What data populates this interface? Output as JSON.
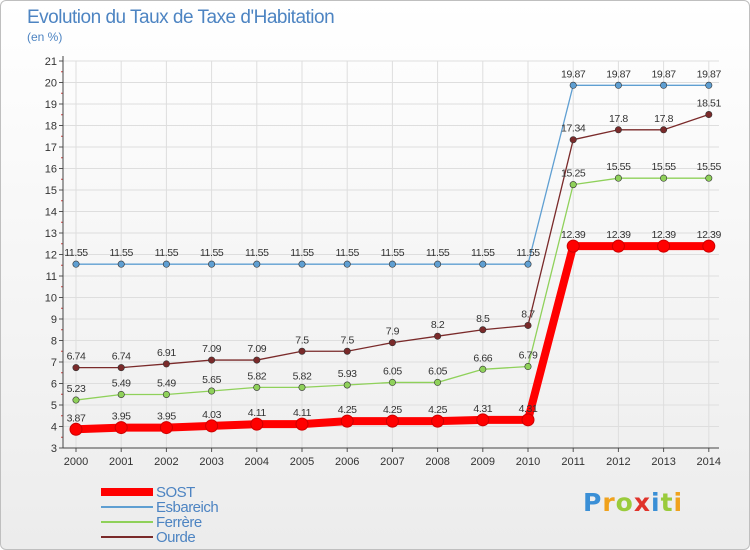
{
  "header": {
    "title": "Evolution du Taux de Taxe d'Habitation",
    "subtitle": "(en %)"
  },
  "logo": {
    "text": "Proxiti",
    "letters": [
      "P",
      "r",
      "o",
      "x",
      "i",
      "t",
      "i"
    ]
  },
  "chart_data": {
    "type": "line",
    "categories": [
      "2000",
      "2001",
      "2002",
      "2003",
      "2004",
      "2005",
      "2006",
      "2007",
      "2008",
      "2009",
      "2010",
      "2011",
      "2012",
      "2013",
      "2014"
    ],
    "ylim": [
      3,
      21
    ],
    "yticks": [
      "3",
      "4",
      "5",
      "6",
      "7",
      "8",
      "9",
      "10",
      "11",
      "12",
      "13",
      "14",
      "15",
      "16",
      "17",
      "18",
      "19",
      "20",
      "21"
    ],
    "grid": true,
    "legend_position": "bottom-left",
    "series": [
      {
        "name": "SOST",
        "color": "#ff0000",
        "values": [
          3.87,
          3.95,
          3.95,
          4.03,
          4.11,
          4.11,
          4.25,
          4.25,
          4.25,
          4.31,
          4.31,
          12.39,
          12.39,
          12.39,
          12.39
        ],
        "labels": [
          "3.87",
          "3.95",
          "3.95",
          "4.03",
          "4.11",
          "4.11",
          "4.25",
          "4.25",
          "4.25",
          "4.31",
          "4.31",
          "12.39",
          "12.39",
          "12.39",
          "12.39"
        ]
      },
      {
        "name": "Esbareich",
        "color": "#5f9fd2",
        "values": [
          11.55,
          11.55,
          11.55,
          11.55,
          11.55,
          11.55,
          11.55,
          11.55,
          11.55,
          11.55,
          11.55,
          19.87,
          19.87,
          19.87,
          19.87
        ],
        "labels": [
          "11.55",
          "11.55",
          "11.55",
          "11.55",
          "11.55",
          "11.55",
          "11.55",
          "11.55",
          "11.55",
          "11.55",
          "11.55",
          "19.87",
          "19.87",
          "19.87",
          "19.87"
        ]
      },
      {
        "name": "Ferrère",
        "color": "#8fd15a",
        "values": [
          5.23,
          5.49,
          5.49,
          5.65,
          5.82,
          5.82,
          5.93,
          6.05,
          6.05,
          6.66,
          6.79,
          15.25,
          15.55,
          15.55,
          15.55
        ],
        "labels": [
          "5.23",
          "5.49",
          "5.49",
          "5.65",
          "5.82",
          "5.82",
          "5.93",
          "6.05",
          "6.05",
          "6.66",
          "6.79",
          "15.25",
          "15.55",
          "15.55",
          "15.55"
        ]
      },
      {
        "name": "Ourde",
        "color": "#7a2a2a",
        "values": [
          6.74,
          6.74,
          6.91,
          7.09,
          7.09,
          7.5,
          7.5,
          7.9,
          8.2,
          8.5,
          8.7,
          17.34,
          17.8,
          17.8,
          18.51
        ],
        "labels": [
          "6.74",
          "6.74",
          "6.91",
          "7.09",
          "7.09",
          "7.5",
          "7.5",
          "7.9",
          "8.2",
          "8.5",
          "8.7",
          "17.34",
          "17.8",
          "17.8",
          "18.51"
        ]
      }
    ]
  }
}
